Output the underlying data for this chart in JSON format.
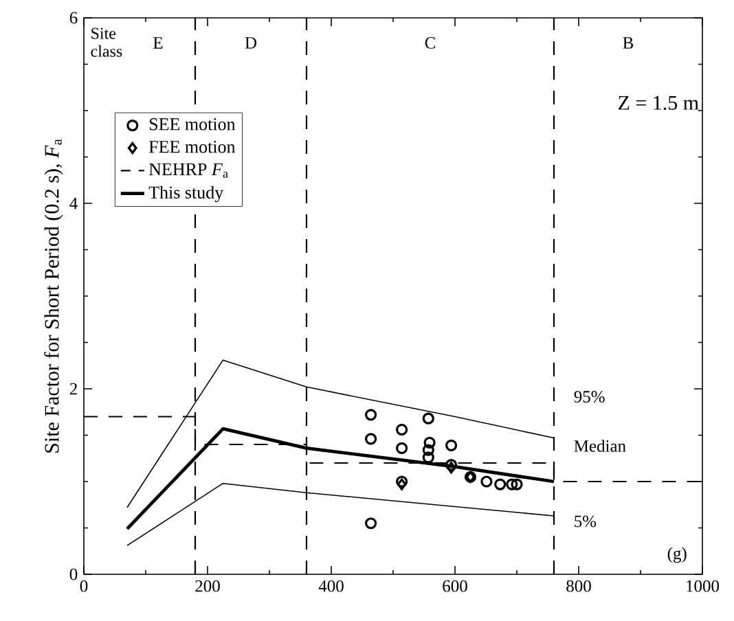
{
  "chart_data": {
    "type": "scatter",
    "ylabel": "Site Factor for Short Period (0.2 s), *F*$_{a}$",
    "xlim": [
      0,
      1000
    ],
    "xticks": [
      0,
      200,
      400,
      600,
      800,
      1000
    ],
    "ylim": [
      0,
      6
    ],
    "yticks": [
      0,
      2,
      4,
      6
    ],
    "grid": false,
    "legend": "top left",
    "series": [
      {
        "name": "SEE motion",
        "marker": "circle",
        "color": "#000000",
        "x": [
          464,
          464,
          464,
          514,
          514,
          514,
          557,
          559,
          557,
          557,
          594,
          594,
          625,
          651,
          673,
          692,
          700
        ],
        "values": [
          1.72,
          1.46,
          0.55,
          1.56,
          1.36,
          1.0,
          1.68,
          1.42,
          1.34,
          1.26,
          1.39,
          1.18,
          1.05,
          1.0,
          0.97,
          0.97,
          0.97
        ]
      },
      {
        "name": "FEE motion",
        "marker": "diamond",
        "color": "#000000",
        "x": [
          514,
          594,
          625
        ],
        "values": [
          0.97,
          1.15,
          1.05
        ]
      },
      {
        "name": "NEHRP *F*$_{a}$",
        "type": "line",
        "line_style": "dashed",
        "marker": "none",
        "color": "#000000",
        "x": [
          0,
          180,
          180,
          360,
          360,
          760,
          760,
          1000
        ],
        "values": [
          1.7,
          1.7,
          1.4,
          1.4,
          1.2,
          1.2,
          1.0,
          1.0
        ]
      },
      {
        "name": "This study",
        "type": "line",
        "line_style": "solid",
        "marker": "none",
        "color": "#000000",
        "x": [
          70,
          225,
          360,
          600,
          760
        ],
        "values": [
          0.49,
          1.57,
          1.36,
          1.16,
          1.0
        ]
      },
      {
        "name": "95%",
        "type": "line",
        "line_style": "solid",
        "marker": "none",
        "color": "#000000",
        "x": [
          70,
          225,
          360,
          600,
          760
        ],
        "values": [
          0.72,
          2.31,
          2.02,
          1.7,
          1.47
        ]
      },
      {
        "name": "5%",
        "type": "line",
        "line_style": "solid",
        "marker": "none",
        "color": "#000000",
        "x": [
          70,
          225,
          360,
          600,
          760
        ],
        "values": [
          0.31,
          0.98,
          0.88,
          0.73,
          0.63
        ]
      }
    ],
    "ref_lines": [
      {
        "axis": "x",
        "value": 180,
        "line_style": "dashed"
      },
      {
        "axis": "x",
        "value": 360,
        "line_style": "dashed"
      },
      {
        "axis": "x",
        "value": 760,
        "line_style": "dashed"
      }
    ],
    "annotations": [
      "Site class",
      "E",
      "D",
      "C",
      "B",
      "Z = 1.5 m",
      {
        "text": "Median",
        "x": 760,
        "y": 1.0
      },
      "(g)"
    ]
  }
}
